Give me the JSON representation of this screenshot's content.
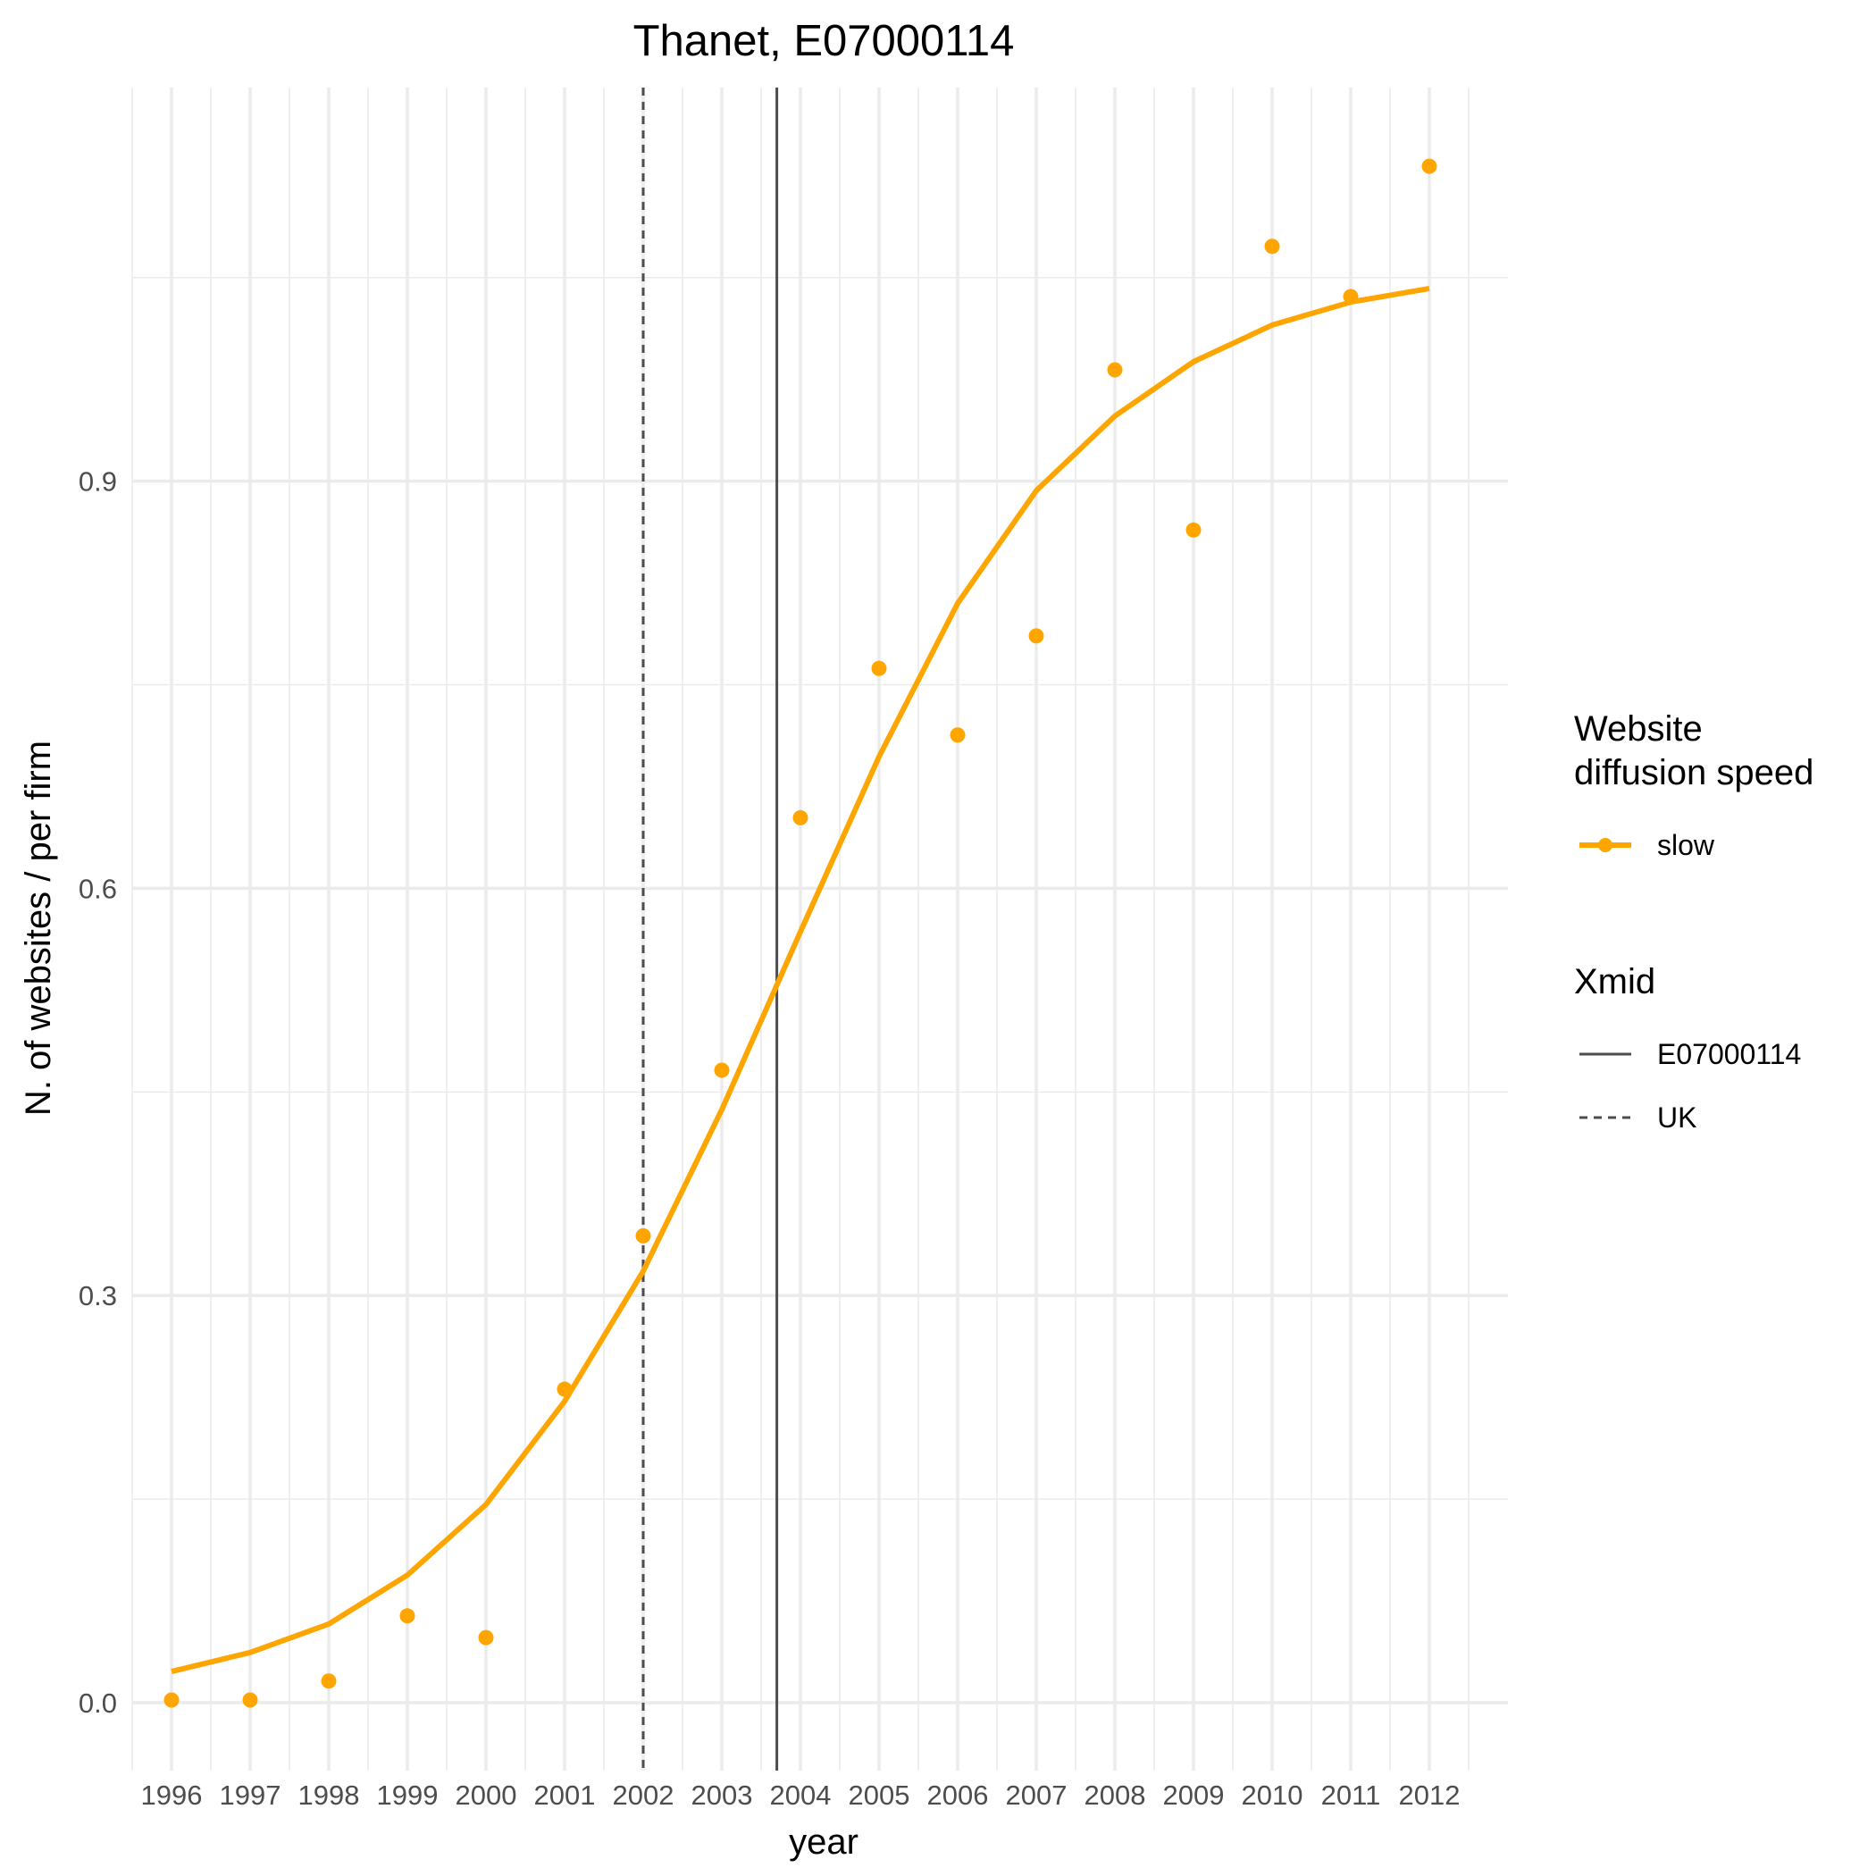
{
  "chart_data": {
    "type": "line",
    "title": "Thanet, E07000114",
    "xlabel": "year",
    "ylabel": "N. of websites / per firm",
    "x": [
      1996,
      1997,
      1998,
      1999,
      2000,
      2001,
      2002,
      2003,
      2004,
      2005,
      2006,
      2007,
      2008,
      2009,
      2010,
      2011,
      2012
    ],
    "x_tick_labels": [
      "1996",
      "1997",
      "1998",
      "1999",
      "2000",
      "2001",
      "2002",
      "2003",
      "2004",
      "2005",
      "2006",
      "2007",
      "2008",
      "2009",
      "2010",
      "2011",
      "2012"
    ],
    "y_ticks": [
      0.0,
      0.3,
      0.6,
      0.9
    ],
    "y_tick_labels": [
      "0.0",
      "0.3",
      "0.6",
      "0.9"
    ],
    "xlim": [
      1995.5,
      2013.0
    ],
    "ylim": [
      -0.05,
      1.19
    ],
    "grid": true,
    "legend_position": "right",
    "series": [
      {
        "name": "slow",
        "color": "#FFA500",
        "points": [
          0.002,
          0.002,
          0.016,
          0.064,
          0.048,
          0.231,
          0.344,
          0.466,
          0.652,
          0.762,
          0.713,
          0.786,
          0.982,
          0.864,
          1.073,
          1.036,
          1.132
        ],
        "fitted": [
          0.023,
          0.037,
          0.058,
          0.094,
          0.146,
          0.222,
          0.318,
          0.437,
          0.568,
          0.697,
          0.81,
          0.893,
          0.948,
          0.988,
          1.015,
          1.032,
          1.042
        ]
      }
    ],
    "vlines": [
      {
        "name": "E07000114",
        "x": 2003.7,
        "linetype": "solid",
        "color": "#4d4d4d"
      },
      {
        "name": "UK",
        "x": 2002.0,
        "linetype": "dashed",
        "color": "#4d4d4d"
      }
    ],
    "legend": {
      "color_title_line1": "Website",
      "color_title_line2": "diffusion speed",
      "color_entries": [
        "slow"
      ],
      "xmid_title": "Xmid",
      "xmid_entries": [
        "E07000114",
        "UK"
      ]
    }
  }
}
